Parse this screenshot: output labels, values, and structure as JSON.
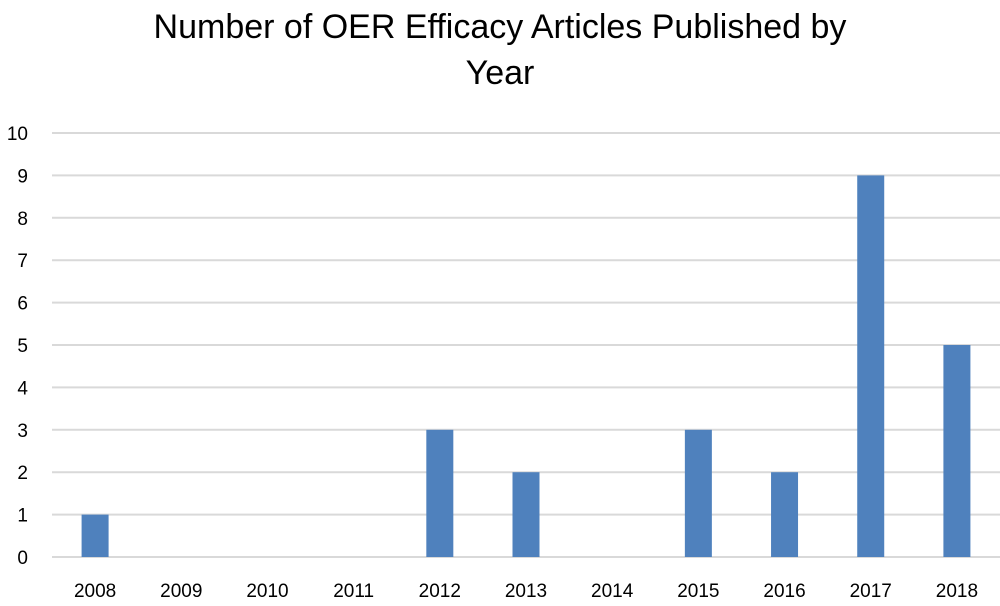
{
  "chart_data": {
    "type": "bar",
    "title_lines": [
      "Number of OER Efficacy Articles Published by",
      "Year"
    ],
    "xlabel": "",
    "ylabel": "",
    "categories": [
      "2008",
      "2009",
      "2010",
      "2011",
      "2012",
      "2013",
      "2014",
      "2015",
      "2016",
      "2017",
      "2018"
    ],
    "values": [
      1,
      0,
      0,
      0,
      3,
      2,
      0,
      3,
      2,
      9,
      5
    ],
    "ylim": [
      0,
      10
    ],
    "yticks": [
      "0",
      "1",
      "2",
      "3",
      "4",
      "5",
      "6",
      "7",
      "8",
      "9",
      "10"
    ],
    "grid": true,
    "bar_color": "#4F81BD",
    "grid_color": "#D9D9D9"
  }
}
